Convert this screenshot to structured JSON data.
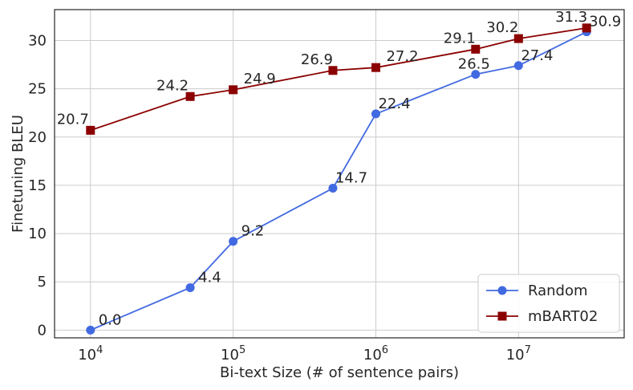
{
  "chart_data": {
    "type": "line",
    "title": "",
    "xlabel": "Bi-text Size (# of sentence pairs)",
    "ylabel": "Finetuning BLEU",
    "x_scale": "log",
    "xlim": [
      5600,
      55000000
    ],
    "ylim": [
      -0.8,
      33.2
    ],
    "x_ticks": [
      {
        "value": 10000,
        "base": "10",
        "exp": "4"
      },
      {
        "value": 100000,
        "base": "10",
        "exp": "5"
      },
      {
        "value": 1000000,
        "base": "10",
        "exp": "6"
      },
      {
        "value": 10000000,
        "base": "10",
        "exp": "7"
      }
    ],
    "y_ticks": [
      0,
      5,
      10,
      15,
      20,
      25,
      30
    ],
    "grid": true,
    "legend_position": "lower-right",
    "series": [
      {
        "name": "Random",
        "color": "#4169e1",
        "marker": "circle",
        "x": [
          10000,
          50000,
          100000,
          500000,
          1000000,
          5000000,
          10000000,
          30000000
        ],
        "values": [
          0.0,
          4.4,
          9.2,
          14.7,
          22.4,
          26.5,
          27.4,
          30.9
        ],
        "labels": [
          "0.0",
          "4.4",
          "9.2",
          "14.7",
          "22.4",
          "26.5",
          "27.4",
          "30.9"
        ]
      },
      {
        "name": "mBART02",
        "color": "#8b0000",
        "marker": "square",
        "x": [
          10000,
          50000,
          100000,
          500000,
          1000000,
          5000000,
          10000000,
          30000000
        ],
        "values": [
          20.7,
          24.2,
          24.9,
          26.9,
          27.2,
          29.1,
          30.2,
          31.3
        ],
        "labels": [
          "20.7",
          "24.2",
          "24.9",
          "26.9",
          "27.2",
          "29.1",
          "30.2",
          "31.3"
        ]
      }
    ]
  }
}
